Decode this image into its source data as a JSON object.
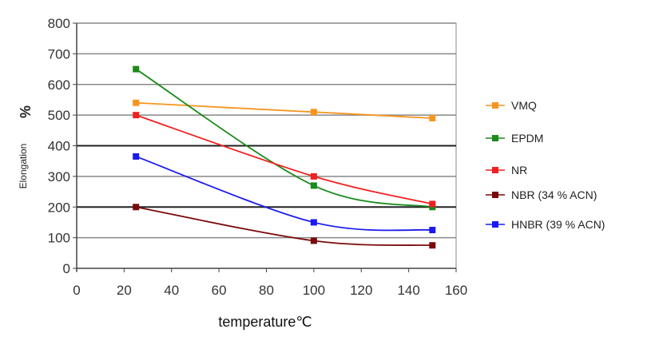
{
  "chart_data": {
    "type": "line",
    "title": "",
    "xlabel": "temperature℃",
    "ylabel_symbol": "%",
    "ylabel": "Elongation",
    "xlim": [
      0,
      160
    ],
    "ylim": [
      0,
      800
    ],
    "xticks": [
      0,
      20,
      40,
      60,
      80,
      100,
      120,
      140,
      160
    ],
    "yticks": [
      0,
      100,
      200,
      300,
      400,
      500,
      600,
      700,
      800
    ],
    "grid": true,
    "legend_position": "right",
    "x": [
      25,
      100,
      150
    ],
    "series": [
      {
        "name": "VMQ",
        "color": "#f7941d",
        "values": [
          540,
          510,
          490
        ]
      },
      {
        "name": "EPDM",
        "color": "#1a8a1a",
        "values": [
          650,
          270,
          200
        ]
      },
      {
        "name": "NR",
        "color": "#f02020",
        "values": [
          500,
          300,
          210
        ]
      },
      {
        "name": "NBR (34 % ACN)",
        "color": "#7a0a0a",
        "values": [
          200,
          90,
          75
        ]
      },
      {
        "name": "HNBR (39 % ACN)",
        "color": "#1a1aee",
        "values": [
          365,
          150,
          125
        ]
      }
    ]
  }
}
